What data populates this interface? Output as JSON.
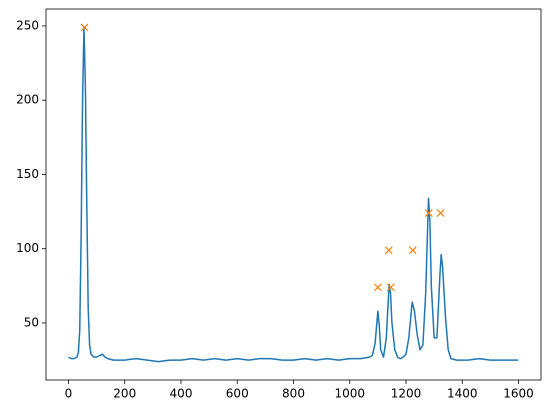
{
  "chart_data": {
    "type": "line",
    "series": [
      {
        "color": "#1f77b4",
        "style": "line",
        "x": [
          0,
          10,
          20,
          30,
          35,
          40,
          45,
          50,
          55,
          60,
          65,
          70,
          75,
          80,
          90,
          100,
          110,
          120,
          130,
          140,
          160,
          200,
          240,
          280,
          320,
          360,
          400,
          440,
          480,
          520,
          560,
          600,
          640,
          680,
          720,
          760,
          800,
          840,
          880,
          920,
          960,
          1000,
          1040,
          1070,
          1080,
          1090,
          1100,
          1105,
          1110,
          1120,
          1130,
          1140,
          1145,
          1150,
          1160,
          1170,
          1180,
          1190,
          1200,
          1210,
          1222,
          1230,
          1240,
          1250,
          1260,
          1270,
          1280,
          1285,
          1290,
          1300,
          1310,
          1320,
          1325,
          1330,
          1340,
          1350,
          1360,
          1380,
          1420,
          1460,
          1500,
          1540,
          1580,
          1599
        ],
        "values": [
          27,
          26,
          26,
          27,
          30,
          45,
          110,
          200,
          249,
          210,
          130,
          60,
          35,
          29,
          27,
          27,
          28,
          29,
          27,
          26,
          25,
          25,
          26,
          25,
          24,
          25,
          25,
          26,
          25,
          26,
          25,
          26,
          25,
          26,
          26,
          25,
          25,
          26,
          25,
          26,
          25,
          26,
          26,
          27,
          28,
          36,
          58,
          48,
          32,
          27,
          40,
          76,
          70,
          50,
          32,
          27,
          26,
          27,
          29,
          40,
          64,
          58,
          42,
          32,
          35,
          70,
          134,
          118,
          75,
          40,
          40,
          80,
          96,
          88,
          55,
          32,
          26,
          25,
          25,
          26,
          25,
          25,
          25,
          25
        ]
      },
      {
        "color": "#ff7f0e",
        "style": "x",
        "x": [
          57,
          1100,
          1146,
          1139,
          1224,
          1281,
          1323
        ],
        "values": [
          249,
          74,
          74,
          99,
          99,
          124,
          124
        ]
      }
    ],
    "xlim": [
      -80,
      1680
    ],
    "xticks": [
      0,
      200,
      400,
      600,
      800,
      1000,
      1200,
      1400,
      1600
    ],
    "ylim": [
      11.6,
      261.4
    ],
    "yticks": [
      50,
      100,
      150,
      200,
      250
    ]
  }
}
